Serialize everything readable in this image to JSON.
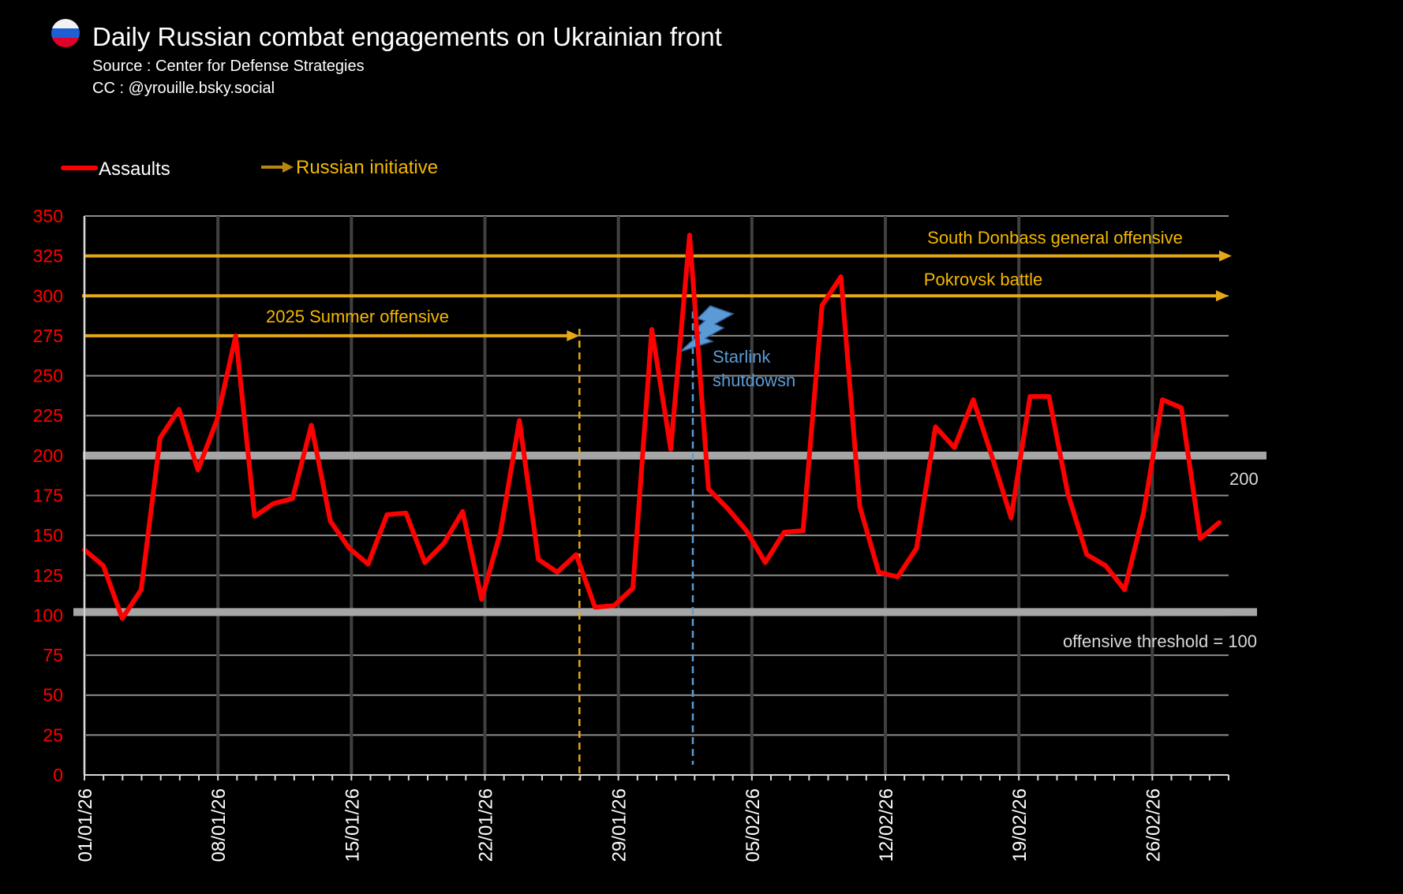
{
  "header": {
    "title": "Daily Russian combat engagements on Ukrainian front",
    "source": "Source : Center for Defense Strategies",
    "credit": "CC : @yrouille.bsky.social",
    "flag_icon": "russia-flag-icon"
  },
  "legend": {
    "assaults": "Assaults",
    "initiative": "Russian initiative"
  },
  "colors": {
    "assaults": "#ff0000",
    "initiative": "#e6a817",
    "starlink": "#5b9bd5",
    "threshold": "#a6a6a6",
    "axis_labels": "#ff0000"
  },
  "chart_data": {
    "type": "line",
    "title": "Daily Russian combat engagements on Ukrainian front",
    "xlabel": "",
    "ylabel": "",
    "ylim": [
      0,
      350
    ],
    "y_ticks": [
      "0",
      "25",
      "50",
      "75",
      "100",
      "125",
      "150",
      "175",
      "200",
      "225",
      "250",
      "275",
      "300",
      "325",
      "350"
    ],
    "x_tick_labels": [
      "01/01/26",
      "08/01/26",
      "15/01/26",
      "22/01/26",
      "29/01/26",
      "05/02/26",
      "12/02/26",
      "19/02/26",
      "26/02/26"
    ],
    "x_tick_days": [
      0,
      7,
      14,
      21,
      28,
      35,
      42,
      49,
      56
    ],
    "grid": true,
    "legend_position": "top-left",
    "series": [
      {
        "name": "Assaults",
        "values": [
          141,
          131,
          98,
          116,
          211,
          229,
          191,
          222,
          275,
          162,
          170,
          173,
          219,
          159,
          142,
          132,
          163,
          164,
          133,
          145,
          165,
          110,
          152,
          222,
          135,
          127,
          138,
          105,
          106,
          117,
          279,
          204,
          338,
          179,
          167,
          153,
          133,
          152,
          153,
          294,
          312,
          168,
          127,
          124,
          142,
          218,
          205,
          235,
          199,
          161,
          237,
          237,
          176,
          138,
          131,
          116,
          164,
          235,
          230,
          148,
          158
        ]
      }
    ],
    "annotations": {
      "south_donbass": {
        "label": "South Donbass general offensive",
        "level": 325
      },
      "pokrovsk": {
        "label": "Pokrovsk battle",
        "level": 300
      },
      "summer": {
        "label": "2025 Summer offensive",
        "level": 275,
        "end_day": 26
      },
      "starlink": {
        "line1": "Starlink",
        "line2": "shutdowsn",
        "day": 32
      },
      "threshold_200": {
        "label": "200",
        "level": 200
      },
      "threshold_100": {
        "label": "offensive threshold = 100",
        "level": 102
      }
    }
  }
}
